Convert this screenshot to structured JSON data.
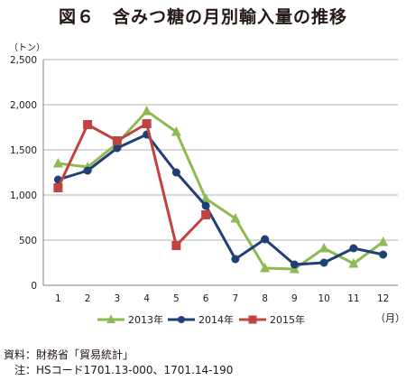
{
  "figure": {
    "title": "図６　含みつ糖の月別輸入量の推移",
    "y_unit": "（トン）",
    "x_unit": "（月）",
    "source": "資料：財務省「貿易統計」",
    "note": "注：HSコード1701.13-000、1701.14-190"
  },
  "chart_data": {
    "type": "line",
    "title": "図６　含みつ糖の月別輸入量の推移",
    "xlabel": "（月）",
    "ylabel": "（トン）",
    "x": [
      1,
      2,
      3,
      4,
      5,
      6,
      7,
      8,
      9,
      10,
      11,
      12
    ],
    "x_tick_labels": [
      "1",
      "2",
      "3",
      "4",
      "5",
      "6",
      "7",
      "8",
      "9",
      "10",
      "11",
      "12"
    ],
    "ylim": [
      0,
      2500
    ],
    "y_ticks": [
      0,
      500,
      1000,
      1500,
      2000,
      2500
    ],
    "y_tick_labels": [
      "0",
      "500",
      "1,000",
      "1,500",
      "2,000",
      "2,500"
    ],
    "grid": "horizontal",
    "legend_position": "bottom",
    "series": [
      {
        "name": "2013年",
        "color": "#8dba52",
        "marker": "triangle",
        "values": [
          1350,
          1310,
          1570,
          1930,
          1700,
          960,
          740,
          190,
          180,
          410,
          240,
          480
        ]
      },
      {
        "name": "2014年",
        "color": "#1f3f77",
        "marker": "circle",
        "values": [
          1170,
          1270,
          1520,
          1670,
          1250,
          880,
          290,
          510,
          230,
          250,
          410,
          340
        ]
      },
      {
        "name": "2015年",
        "color": "#c0433f",
        "marker": "square",
        "values": [
          1080,
          1780,
          1600,
          1790,
          440,
          780,
          null,
          null,
          null,
          null,
          null,
          null
        ]
      }
    ]
  }
}
